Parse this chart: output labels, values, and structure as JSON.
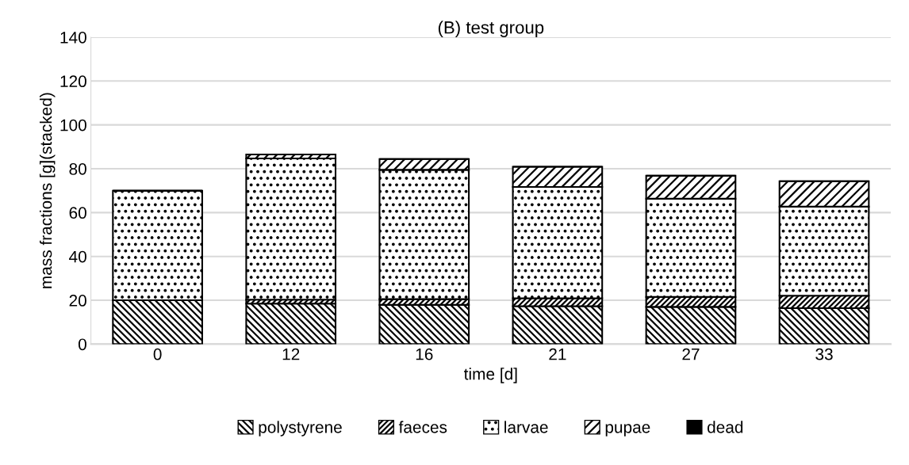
{
  "chart_data": {
    "type": "bar",
    "stacked": true,
    "title": "(B) test group",
    "xlabel": "time [d]",
    "ylabel": "mass fractions [g](stacked)",
    "categories": [
      "0",
      "12",
      "16",
      "21",
      "27",
      "33"
    ],
    "series": [
      {
        "name": "polystyrene",
        "color": "#000000",
        "values": [
          20,
          18.5,
          17.9,
          17.3,
          17.0,
          16.4
        ]
      },
      {
        "name": "faeces",
        "color": "#000000",
        "values": [
          0,
          1.8,
          2.6,
          3.6,
          4.5,
          5.7
        ]
      },
      {
        "name": "larvae",
        "color": "#000000",
        "values": [
          50,
          64.4,
          59.0,
          50.8,
          44.8,
          40.6
        ]
      },
      {
        "name": "pupae",
        "color": "#000000",
        "values": [
          0,
          1.8,
          4.9,
          9.2,
          10.5,
          11.6
        ]
      },
      {
        "name": "dead",
        "color": "#000000",
        "values": [
          0,
          0,
          0,
          0,
          0,
          0
        ]
      }
    ],
    "ylim": [
      0,
      140
    ],
    "yticks": [
      0,
      20,
      40,
      60,
      80,
      100,
      120,
      140
    ],
    "grid": "y",
    "legend": "bottom"
  }
}
